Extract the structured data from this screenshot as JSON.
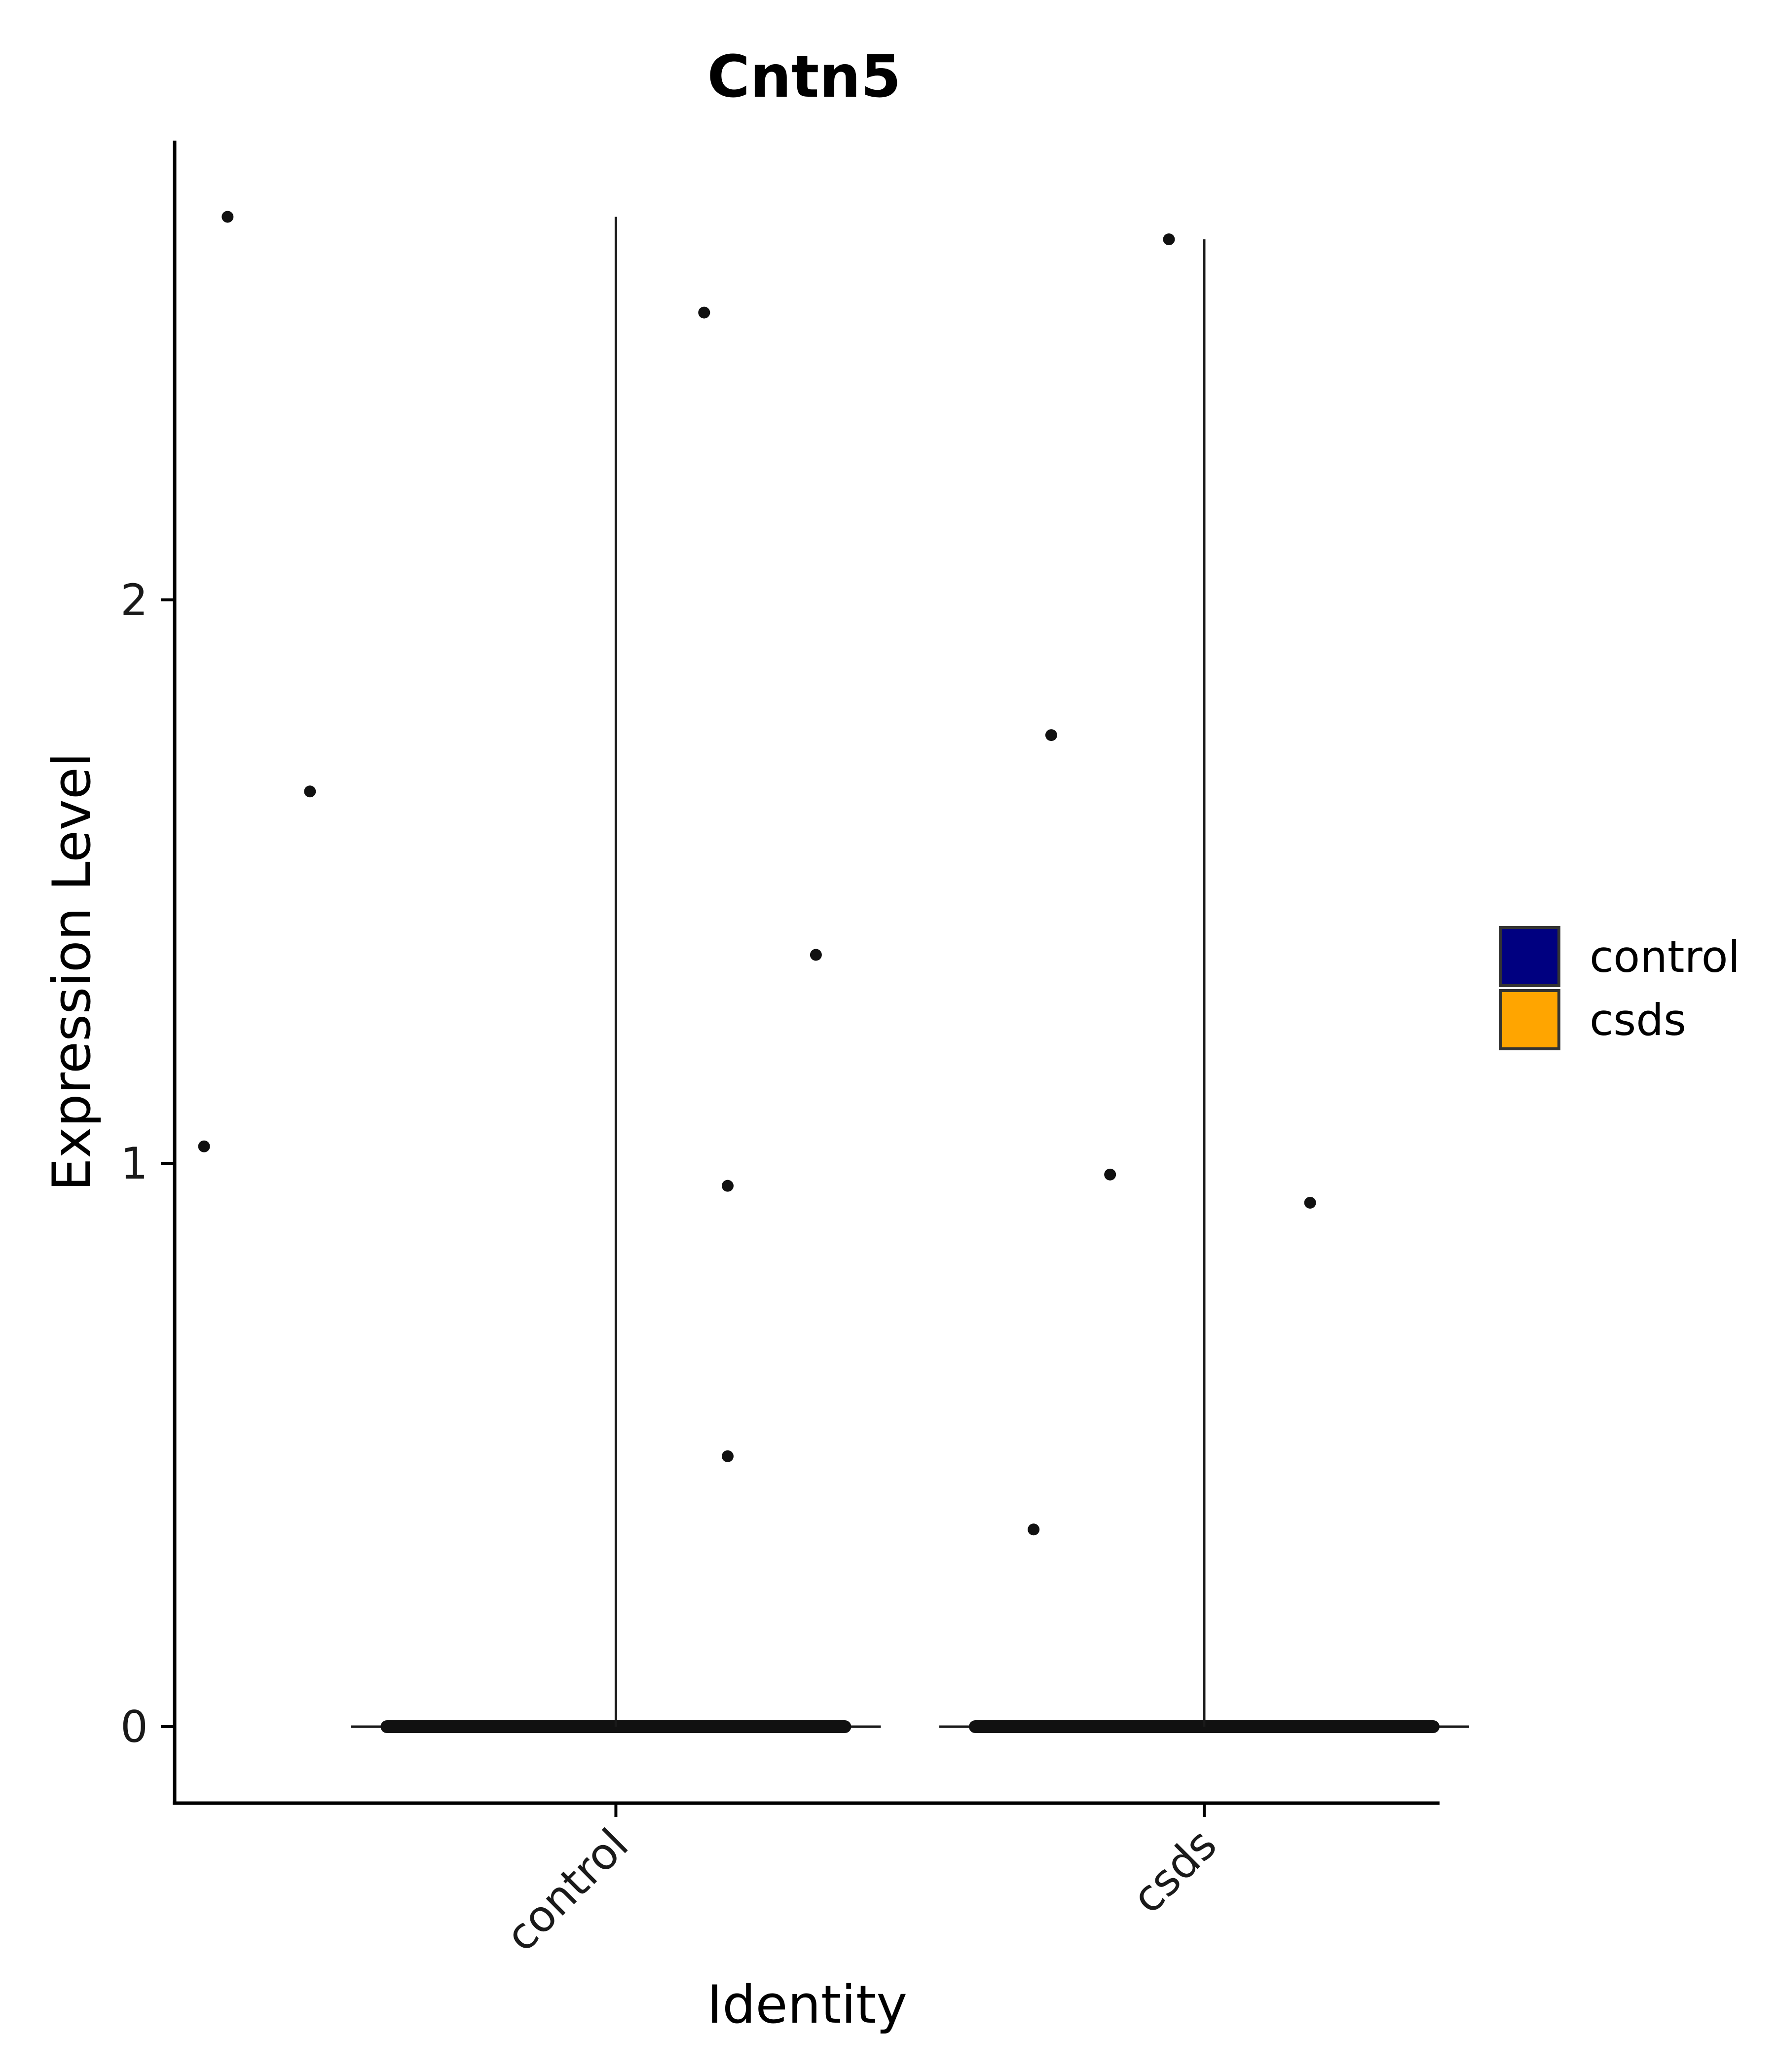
{
  "chart_data": {
    "type": "violin",
    "title": "Cntn5",
    "xlabel": "Identity",
    "ylabel": "Expression Level",
    "categories": [
      "control",
      "csds"
    ],
    "ylim": [
      -0.13,
      2.82
    ],
    "yticks": [
      0,
      1,
      2
    ],
    "legend": {
      "placement": "right",
      "entries": [
        {
          "label": "control",
          "color": "#000080"
        },
        {
          "label": "csds",
          "color": "#FFA500"
        }
      ]
    },
    "series": [
      {
        "category": "control",
        "violin_max": 2.68,
        "points": [
          {
            "x": 0.34,
            "y": 2.68
          },
          {
            "x": 1.15,
            "y": 2.51
          },
          {
            "x": 0.48,
            "y": 1.66
          },
          {
            "x": 1.34,
            "y": 1.37
          },
          {
            "x": 0.3,
            "y": 1.03
          },
          {
            "x": 1.19,
            "y": 0.96
          },
          {
            "x": 1.19,
            "y": 0.48
          }
        ]
      },
      {
        "category": "csds",
        "violin_max": 2.64,
        "points": [
          {
            "x": 1.94,
            "y": 2.64
          },
          {
            "x": 1.74,
            "y": 1.76
          },
          {
            "x": 1.84,
            "y": 0.98
          },
          {
            "x": 2.18,
            "y": 0.93
          },
          {
            "x": 1.71,
            "y": 0.35
          }
        ]
      }
    ],
    "zero_band": {
      "y": 0,
      "jitter_halfwidth": 0.4
    }
  }
}
